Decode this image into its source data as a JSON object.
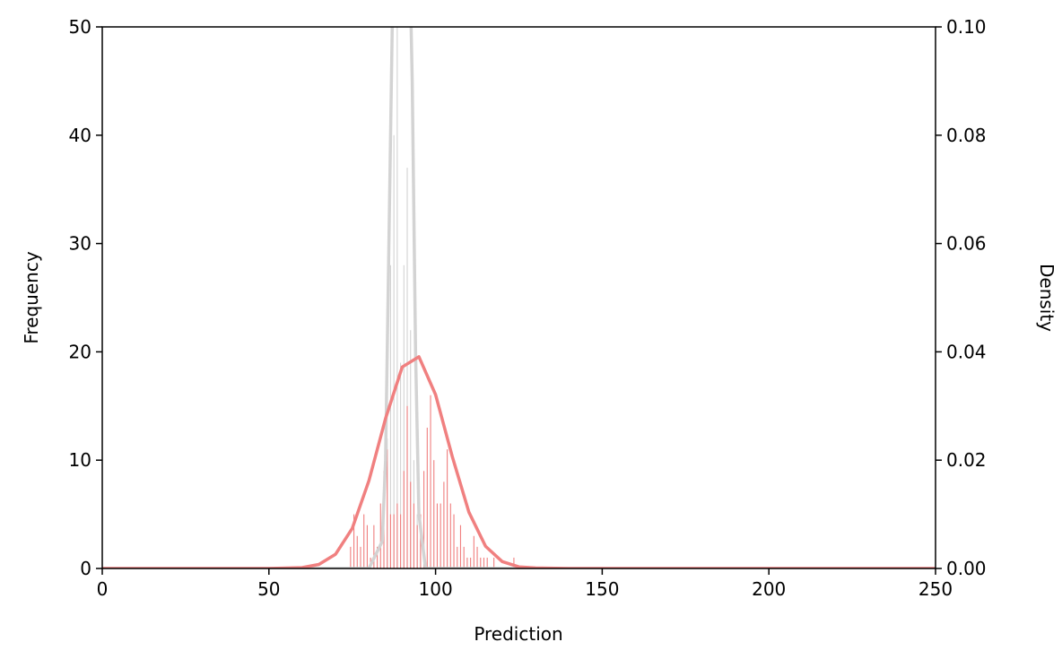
{
  "chart_data": {
    "type": "histogram",
    "xlabel": "Prediction",
    "ylabel": "Frequency",
    "y2label": "Density",
    "bins": [
      74,
      75,
      76,
      77,
      78,
      79,
      80,
      81,
      82,
      83,
      84,
      85,
      86,
      87,
      88,
      89,
      90,
      91,
      92,
      93,
      94,
      95,
      96,
      97,
      98,
      99,
      100,
      101,
      102,
      103,
      104,
      105,
      106,
      107,
      108,
      109,
      110,
      111,
      112,
      113,
      114,
      115,
      116,
      117,
      118,
      119,
      120,
      121,
      122,
      123,
      124
    ],
    "series": [
      {
        "color": "#d3d3d3",
        "values": [
          0,
          0,
          0,
          0,
          0,
          0,
          0,
          0,
          0,
          0,
          2,
          12,
          28,
          40,
          55,
          19,
          28,
          37,
          22,
          10,
          5,
          3,
          0,
          0,
          0,
          0,
          0,
          0,
          0,
          0,
          0,
          0,
          0,
          0,
          0,
          0,
          0,
          0,
          0,
          0,
          0,
          0,
          0,
          0,
          0,
          0,
          0,
          0,
          0,
          0
        ]
      },
      {
        "color": "#f08080",
        "values": [
          2,
          5,
          3,
          2,
          5,
          4,
          1,
          4,
          2,
          6,
          9,
          11,
          5,
          5,
          6,
          5,
          9,
          15,
          8,
          6,
          4,
          5,
          9,
          13,
          16,
          10,
          6,
          6,
          8,
          11,
          6,
          5,
          2,
          4,
          2,
          1,
          1,
          3,
          2,
          1,
          1,
          1,
          0,
          1,
          0,
          0,
          0,
          0,
          0,
          1
        ]
      }
    ],
    "density": [
      {
        "color": "#d3d3d3",
        "axis": "y2",
        "x": [
          0,
          80,
          84,
          85,
          86,
          87,
          88,
          89,
          90,
          91,
          92,
          93,
          94,
          95,
          97,
          250
        ],
        "values": [
          0,
          0,
          0.005,
          0.02,
          0.06,
          0.1,
          0.13,
          0.15,
          0.15,
          0.14,
          0.12,
          0.09,
          0.04,
          0.01,
          0,
          0
        ]
      },
      {
        "color": "#f08080",
        "axis": "y2",
        "x": [
          0,
          50,
          60,
          65,
          70,
          75,
          80,
          85,
          90,
          95,
          100,
          105,
          110,
          115,
          120,
          125,
          130,
          140,
          250
        ],
        "values": [
          0,
          0,
          0.00016,
          0.00074,
          0.00263,
          0.0074,
          0.0162,
          0.0277,
          0.0372,
          0.0391,
          0.0321,
          0.0207,
          0.0104,
          0.0041,
          0.00127,
          0.0003,
          0.0001,
          0,
          0
        ]
      }
    ],
    "xlim": [
      0,
      250
    ],
    "xticks": [
      0,
      50,
      100,
      150,
      200,
      250
    ],
    "ylim": [
      0,
      50
    ],
    "yticks": [
      0,
      10,
      20,
      30,
      40,
      50
    ],
    "y2lim": [
      0,
      0.1
    ],
    "y2ticks": [
      {
        "value": 0,
        "label": "0.00"
      },
      {
        "value": 0.02,
        "label": "0.02"
      },
      {
        "value": 0.04,
        "label": "0.04"
      },
      {
        "value": 0.06,
        "label": "0.06"
      },
      {
        "value": 0.08,
        "label": "0.08"
      },
      {
        "value": 0.1,
        "label": "0.10"
      }
    ]
  }
}
